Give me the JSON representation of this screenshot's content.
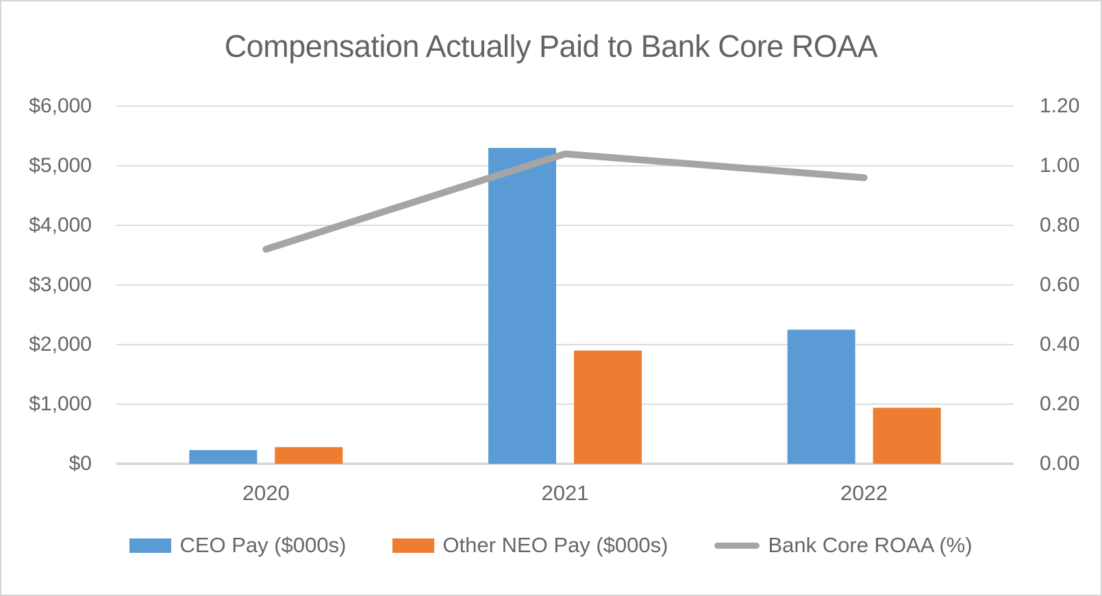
{
  "chart_data": {
    "type": "bar",
    "subtype": "bar-line-combo",
    "title": "Compensation Actually Paid to Bank Core ROAA",
    "categories": [
      "2020",
      "2021",
      "2022"
    ],
    "series": [
      {
        "name": "CEO Pay ($000s)",
        "kind": "bar",
        "axis": "left",
        "color": "#5B9BD5",
        "values": [
          230,
          5300,
          2250
        ]
      },
      {
        "name": "Other NEO Pay ($000s)",
        "kind": "bar",
        "axis": "left",
        "color": "#ED7D31",
        "values": [
          280,
          1900,
          940
        ]
      },
      {
        "name": "Bank Core ROAA (%)",
        "kind": "line",
        "axis": "right",
        "color": "#A5A5A5",
        "values": [
          0.72,
          1.04,
          0.96
        ]
      }
    ],
    "left_axis": {
      "min": 0,
      "max": 6000,
      "tick_step": 1000,
      "tick_labels": [
        "$0",
        "$1,000",
        "$2,000",
        "$3,000",
        "$4,000",
        "$5,000",
        "$6,000"
      ]
    },
    "right_axis": {
      "min": 0,
      "max": 1.2,
      "tick_step": 0.2,
      "tick_labels": [
        "0.00",
        "0.20",
        "0.40",
        "0.60",
        "0.80",
        "1.00",
        "1.20"
      ]
    },
    "grid": true,
    "legend_position": "bottom"
  },
  "styles": {
    "text_color": "#666666",
    "title_color": "#636363",
    "grid_color": "#dcdcdc",
    "baseline_color": "#d6d6d6",
    "background": "#FFFFFF",
    "border_color": "#d5d5d5"
  }
}
